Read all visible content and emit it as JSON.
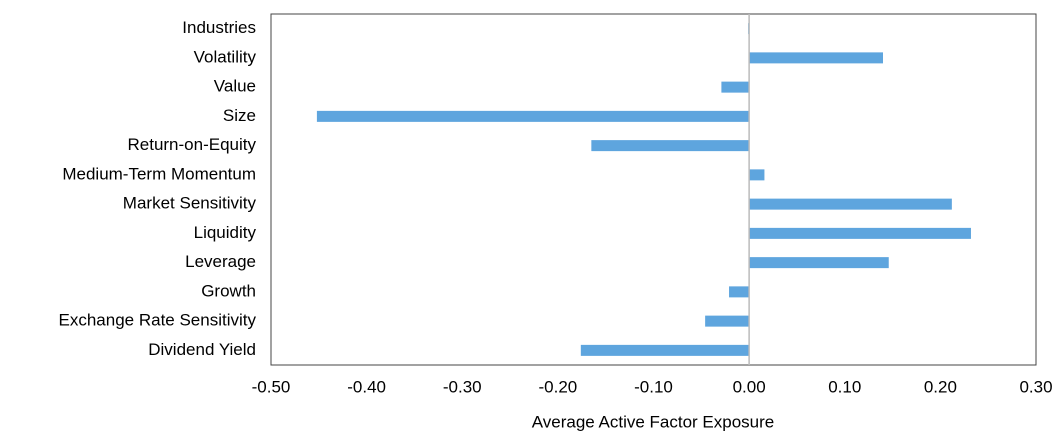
{
  "chart_data": {
    "type": "barh",
    "xlabel": "Average Active Factor Exposure",
    "categories": [
      "Industries",
      "Volatility",
      "Value",
      "Size",
      "Return-on-Equity",
      "Medium-Term Momentum",
      "Market Sensitivity",
      "Liquidity",
      "Leverage",
      "Growth",
      "Exchange Rate Sensitivity",
      "Dividend Yield"
    ],
    "values": [
      -0.001,
      0.14,
      -0.029,
      -0.452,
      -0.165,
      0.016,
      0.212,
      0.232,
      0.146,
      -0.021,
      -0.046,
      -0.176
    ],
    "color": "#5ea5de",
    "xlim": [
      -0.5,
      0.3
    ],
    "xticks": [
      {
        "value": -0.5,
        "label": "-0.50"
      },
      {
        "value": -0.4,
        "label": "-0.40"
      },
      {
        "value": -0.3,
        "label": "-0.30"
      },
      {
        "value": -0.2,
        "label": "-0.20"
      },
      {
        "value": -0.1,
        "label": "-0.10"
      },
      {
        "value": 0,
        "label": "0.00"
      },
      {
        "value": 0.1,
        "label": "0.10"
      },
      {
        "value": 0.2,
        "label": "0.20"
      },
      {
        "value": 0.3,
        "label": "0.30"
      }
    ],
    "grid": false
  }
}
